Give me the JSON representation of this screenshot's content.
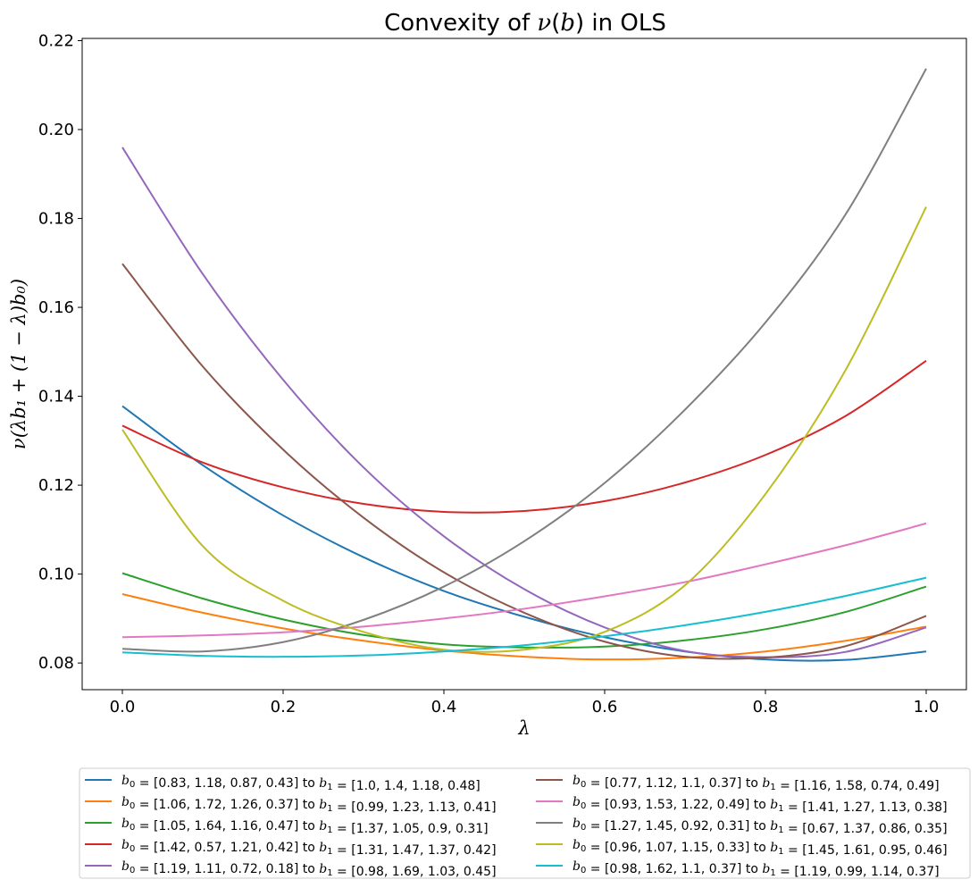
{
  "chart_data": {
    "type": "line",
    "title": "Convexity of ν(b) in OLS",
    "title_parts": [
      "Convexity of ",
      "ν",
      "(",
      "b",
      ") in OLS"
    ],
    "xlabel": "λ",
    "ylabel": "ν(λb₁ + (1 − λ)b₀)",
    "xlim": [
      -0.05,
      1.05
    ],
    "ylim": [
      0.074,
      0.2205
    ],
    "xticks": [
      0.0,
      0.2,
      0.4,
      0.6,
      0.8,
      1.0
    ],
    "xtick_labels": [
      "0.0",
      "0.2",
      "0.4",
      "0.6",
      "0.8",
      "1.0"
    ],
    "yticks": [
      0.08,
      0.1,
      0.12,
      0.14,
      0.16,
      0.18,
      0.2,
      0.22
    ],
    "ytick_labels": [
      "0.08",
      "0.10",
      "0.12",
      "0.14",
      "0.16",
      "0.18",
      "0.20",
      "0.22"
    ],
    "x": [
      0.0,
      0.1,
      0.2,
      0.3,
      0.4,
      0.5,
      0.6,
      0.7,
      0.8,
      0.9,
      1.0
    ],
    "legend_position": "below",
    "series": [
      {
        "name": "b0 = [0.83, 1.18, 0.87, 0.43] to b1 = [1.0, 1.4, 1.18, 0.48]",
        "b0": "[0.83, 1.18, 0.87, 0.43]",
        "b1": "[1.0, 1.4, 1.18, 0.48]",
        "color": "#1f77b4",
        "values": [
          0.1378,
          0.1245,
          0.1132,
          0.1038,
          0.0962,
          0.0904,
          0.0858,
          0.0826,
          0.0808,
          0.0807,
          0.0826
        ]
      },
      {
        "name": "b0 = [1.06, 1.72, 1.26, 0.37] to b1 = [0.99, 1.23, 1.13, 0.41]",
        "b0": "[1.06, 1.72, 1.26, 0.37]",
        "b1": "[0.99, 1.23, 1.13, 0.41]",
        "color": "#ff7f0e",
        "values": [
          0.0955,
          0.0913,
          0.0878,
          0.085,
          0.0828,
          0.0814,
          0.0808,
          0.0812,
          0.0826,
          0.085,
          0.0882
        ]
      },
      {
        "name": "b0 = [1.05, 1.64, 1.16, 0.47] to b1 = [1.37, 1.05, 0.9, 0.31]",
        "b0": "[1.05, 1.64, 1.16, 0.47]",
        "b1": "[1.37, 1.05, 0.9, 0.31]",
        "color": "#2ca02c",
        "values": [
          0.1002,
          0.0945,
          0.0898,
          0.0863,
          0.0842,
          0.0835,
          0.0837,
          0.0851,
          0.0876,
          0.0915,
          0.0972
        ]
      },
      {
        "name": "b0 = [1.42, 0.57, 1.21, 0.42] to b1 = [1.31, 1.47, 1.37, 0.42]",
        "b0": "[1.42, 0.57, 1.21, 0.42]",
        "b1": "[1.31, 1.47, 1.37, 0.42]",
        "color": "#d62728",
        "values": [
          0.1334,
          0.1251,
          0.1195,
          0.1158,
          0.114,
          0.1142,
          0.1164,
          0.1206,
          0.1268,
          0.1356,
          0.148
        ]
      },
      {
        "name": "b0 = [1.19, 1.11, 0.72, 0.18] to b1 = [0.98, 1.69, 1.03, 0.45]",
        "b0": "[1.19, 1.11, 0.72, 0.18]",
        "b1": "[0.98, 1.69, 1.03, 0.45]",
        "color": "#9467bd",
        "values": [
          0.196,
          0.1675,
          0.1437,
          0.124,
          0.1085,
          0.0966,
          0.088,
          0.0827,
          0.0813,
          0.0825,
          0.088
        ]
      },
      {
        "name": "b0 = [0.77, 1.12, 1.1, 0.37] to b1 = [1.16, 1.58, 0.74, 0.49]",
        "b0": "[0.77, 1.12, 1.1, 0.37]",
        "b1": "[1.16, 1.58, 0.74, 0.49]",
        "color": "#8c564b",
        "values": [
          0.1698,
          0.1467,
          0.128,
          0.1127,
          0.1004,
          0.0913,
          0.0848,
          0.0814,
          0.0812,
          0.0838,
          0.0906
        ]
      },
      {
        "name": "b0 = [0.93, 1.53, 1.22, 0.49] to b1 = [1.41, 1.27, 1.13, 0.38]",
        "b0": "[0.93, 1.53, 1.22, 0.49]",
        "b1": "[1.41, 1.27, 1.13, 0.38]",
        "color": "#e377c2",
        "values": [
          0.0858,
          0.0862,
          0.0869,
          0.0882,
          0.09,
          0.0922,
          0.095,
          0.0982,
          0.1022,
          0.1065,
          0.1114
        ]
      },
      {
        "name": "b0 = [1.27, 1.45, 0.92, 0.31] to b1 = [0.67, 1.37, 0.86, 0.35]",
        "b0": "[1.27, 1.45, 0.92, 0.31]",
        "b1": "[0.67, 1.37, 0.86, 0.35]",
        "color": "#7f7f7f",
        "values": [
          0.0832,
          0.0826,
          0.0847,
          0.0897,
          0.0972,
          0.1074,
          0.1205,
          0.137,
          0.1566,
          0.181,
          0.2137
        ]
      },
      {
        "name": "b0 = [0.96, 1.07, 1.15, 0.33] to b1 = [1.45, 1.61, 0.95, 0.46]",
        "b0": "[0.96, 1.07, 1.15, 0.33]",
        "b1": "[1.45, 1.61, 0.95, 0.46]",
        "color": "#bcbd22",
        "values": [
          0.1325,
          0.1063,
          0.094,
          0.087,
          0.083,
          0.083,
          0.087,
          0.0975,
          0.118,
          0.146,
          0.1826
        ]
      },
      {
        "name": "b0 = [0.98, 1.62, 1.1, 0.37] to b1 = [1.19, 0.99, 1.14, 0.37]",
        "b0": "[0.98, 1.62, 1.1, 0.37]",
        "b1": "[1.19, 0.99, 1.14, 0.37]",
        "color": "#17becf",
        "values": [
          0.0824,
          0.0816,
          0.0814,
          0.0817,
          0.0826,
          0.084,
          0.086,
          0.0885,
          0.0915,
          0.0951,
          0.0992
        ]
      }
    ]
  }
}
